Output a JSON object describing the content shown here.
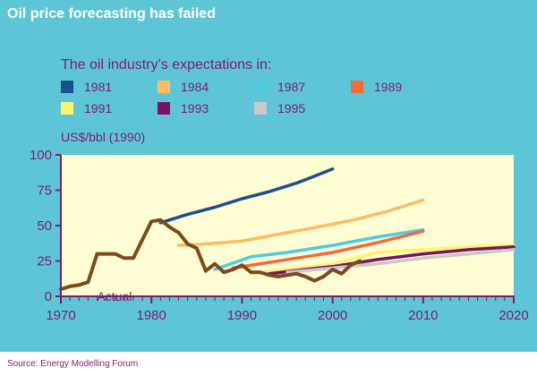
{
  "title": "Oil price forecasting has failed",
  "subtitle": "The oil industry’s expectations in:",
  "y_unit": "US$/bbl (1990)",
  "source": "Source: Energy Modelling Forum",
  "colors": {
    "panel": "#5ec5d6",
    "plot_bg": "#fffdd3",
    "axis": "#7a1f6d",
    "actual": "#7b4a1e"
  },
  "legend": [
    {
      "label": "1981",
      "color": "#1d4f8c"
    },
    {
      "label": "1984",
      "color": "#fdbd66"
    },
    {
      "label": "1987",
      "color": "#4fcbe0"
    },
    {
      "label": "1989",
      "color": "#f26b3a"
    },
    {
      "label": "1991",
      "color": "#fbf56e"
    },
    {
      "label": "1993",
      "color": "#7a1265"
    },
    {
      "label": "1995",
      "color": "#c9c9c9"
    }
  ],
  "chart_data": {
    "type": "line",
    "xlim": [
      1970,
      2020
    ],
    "ylim": [
      0,
      100
    ],
    "x_ticks": [
      1970,
      1980,
      1990,
      2000,
      2010,
      2020
    ],
    "y_ticks": [
      0,
      25,
      50,
      75,
      100
    ],
    "series": [
      {
        "name": "1981",
        "color": "#1d4f8c",
        "points": [
          [
            1981,
            52
          ],
          [
            1984,
            58
          ],
          [
            1987,
            63
          ],
          [
            1990,
            69
          ],
          [
            1993,
            74
          ],
          [
            1996,
            80
          ],
          [
            1998,
            85
          ],
          [
            2000,
            90
          ]
        ]
      },
      {
        "name": "1984",
        "color": "#fdbd66",
        "points": [
          [
            1983,
            36
          ],
          [
            1986,
            37
          ],
          [
            1990,
            39
          ],
          [
            1995,
            45
          ],
          [
            2000,
            51
          ],
          [
            2003,
            55
          ],
          [
            2006,
            60
          ],
          [
            2010,
            68
          ]
        ]
      },
      {
        "name": "1987",
        "color": "#4fcbe0",
        "points": [
          [
            1987,
            19
          ],
          [
            1991,
            28
          ],
          [
            1995,
            31
          ],
          [
            2000,
            36
          ],
          [
            2005,
            42
          ],
          [
            2010,
            47
          ]
        ]
      },
      {
        "name": "1989",
        "color": "#f26b3a",
        "points": [
          [
            1989,
            20
          ],
          [
            1993,
            24
          ],
          [
            1997,
            28
          ],
          [
            2000,
            31
          ],
          [
            2005,
            38
          ],
          [
            2010,
            46
          ]
        ]
      },
      {
        "name": "1991",
        "color": "#fbf56e",
        "points": [
          [
            1991,
            16
          ],
          [
            1995,
            19
          ],
          [
            2000,
            23
          ],
          [
            2005,
            31
          ],
          [
            2010,
            33
          ],
          [
            2015,
            35
          ],
          [
            2020,
            36
          ]
        ]
      },
      {
        "name": "1993",
        "color": "#7a1265",
        "points": [
          [
            1993,
            16
          ],
          [
            1997,
            19
          ],
          [
            2000,
            21
          ],
          [
            2005,
            26
          ],
          [
            2010,
            30
          ],
          [
            2015,
            33
          ],
          [
            2020,
            35
          ]
        ]
      },
      {
        "name": "1995",
        "color": "#c9c9c9",
        "points": [
          [
            1995,
            17
          ],
          [
            2000,
            20
          ],
          [
            2005,
            23
          ],
          [
            2010,
            27
          ],
          [
            2015,
            30
          ],
          [
            2020,
            33
          ]
        ]
      },
      {
        "name": "Actual",
        "color": "#7b4a1e",
        "points": [
          [
            1970,
            5
          ],
          [
            1971,
            7
          ],
          [
            1972,
            8
          ],
          [
            1973,
            10
          ],
          [
            1974,
            30
          ],
          [
            1976,
            30
          ],
          [
            1977,
            27
          ],
          [
            1978,
            27
          ],
          [
            1979,
            40
          ],
          [
            1980,
            53
          ],
          [
            1981,
            54
          ],
          [
            1982,
            49
          ],
          [
            1983,
            45
          ],
          [
            1984,
            37
          ],
          [
            1985,
            34
          ],
          [
            1986,
            18
          ],
          [
            1987,
            23
          ],
          [
            1988,
            17
          ],
          [
            1989,
            19
          ],
          [
            1990,
            22
          ],
          [
            1991,
            17
          ],
          [
            1992,
            17
          ],
          [
            1993,
            15
          ],
          [
            1994,
            14
          ],
          [
            1995,
            15
          ],
          [
            1996,
            16
          ],
          [
            1997,
            14
          ],
          [
            1998,
            11
          ],
          [
            1999,
            14
          ],
          [
            2000,
            19
          ],
          [
            2001,
            16
          ],
          [
            2002,
            22
          ],
          [
            2003,
            25
          ]
        ]
      }
    ],
    "annotations": [
      {
        "text": "Actual",
        "x": 1974,
        "y": 7
      }
    ],
    "grid": false,
    "legend_position": "top"
  }
}
